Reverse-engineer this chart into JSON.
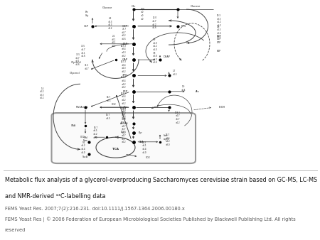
{
  "title_line1": "Metabolic flux analysis of a glycerol-overproducing Saccharomyces cerevisiae strain based on GC-MS, LC-MS",
  "title_line2": "and NMR-derived ¹³C-labelling data",
  "ref_line1": "FEMS Yeast Res. 2007;7(2):216-231. doi:10.1111/j.1567-1364.2006.00180.x",
  "ref_line2": "FEMS Yeast Res | © 2006 Federation of European Microbiological Societies Published by Blackwell Publishing Ltd. All rights",
  "ref_line3": "reserved",
  "bg_color": "#ffffff",
  "line_color": "#444444",
  "fig_width": 4.5,
  "fig_height": 3.38,
  "caption_split": 0.3
}
